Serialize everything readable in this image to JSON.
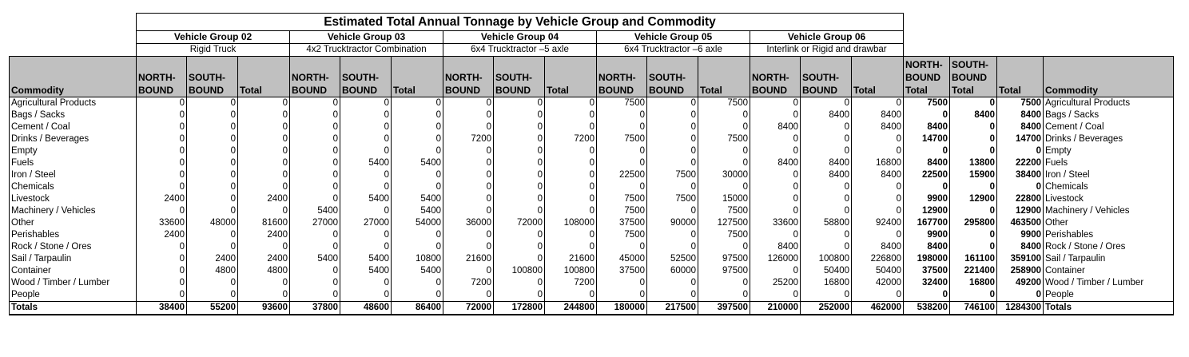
{
  "title": "Estimated Total Annual Tonnage by Vehicle Group and Commodity",
  "groups": [
    {
      "name": "Vehicle Group 02",
      "desc": "Rigid Truck"
    },
    {
      "name": "Vehicle Group 03",
      "desc": "4x2 Trucktractor Combination"
    },
    {
      "name": "Vehicle Group 04",
      "desc": "6x4 Trucktractor –5 axle"
    },
    {
      "name": "Vehicle Group 05",
      "desc": "6x4 Trucktractor –6 axle"
    },
    {
      "name": "Vehicle Group 06",
      "desc": "Interlink or Rigid and drawbar"
    }
  ],
  "headers": {
    "commodity": "Commodity",
    "north": "NORTH-BOUND",
    "south": "SOUTH-BOUND",
    "total": "Total",
    "north_total": "NORTH-BOUND Total",
    "south_total": "SOUTH-BOUND Total",
    "grand_total": "Total",
    "commodity_right": "Commodity"
  },
  "rows": [
    {
      "label": "Agricultural Products",
      "values": [
        0,
        0,
        0,
        0,
        0,
        0,
        0,
        0,
        0,
        7500,
        0,
        7500,
        0,
        0,
        0,
        7500,
        0,
        7500
      ]
    },
    {
      "label": "Bags / Sacks",
      "values": [
        0,
        0,
        0,
        0,
        0,
        0,
        0,
        0,
        0,
        0,
        0,
        0,
        0,
        8400,
        8400,
        0,
        8400,
        8400
      ]
    },
    {
      "label": "Cement / Coal",
      "values": [
        0,
        0,
        0,
        0,
        0,
        0,
        0,
        0,
        0,
        0,
        0,
        0,
        8400,
        0,
        8400,
        8400,
        0,
        8400
      ]
    },
    {
      "label": "Drinks / Beverages",
      "values": [
        0,
        0,
        0,
        0,
        0,
        0,
        7200,
        0,
        7200,
        7500,
        0,
        7500,
        0,
        0,
        0,
        14700,
        0,
        14700
      ]
    },
    {
      "label": "Empty",
      "values": [
        0,
        0,
        0,
        0,
        0,
        0,
        0,
        0,
        0,
        0,
        0,
        0,
        0,
        0,
        0,
        0,
        0,
        0
      ]
    },
    {
      "label": "Fuels",
      "values": [
        0,
        0,
        0,
        0,
        5400,
        5400,
        0,
        0,
        0,
        0,
        0,
        0,
        8400,
        8400,
        16800,
        8400,
        13800,
        22200
      ]
    },
    {
      "label": "Iron / Steel",
      "values": [
        0,
        0,
        0,
        0,
        0,
        0,
        0,
        0,
        0,
        22500,
        7500,
        30000,
        0,
        8400,
        8400,
        22500,
        15900,
        38400
      ]
    },
    {
      "label": "Chemicals",
      "values": [
        0,
        0,
        0,
        0,
        0,
        0,
        0,
        0,
        0,
        0,
        0,
        0,
        0,
        0,
        0,
        0,
        0,
        0
      ]
    },
    {
      "label": "Livestock",
      "values": [
        2400,
        0,
        2400,
        0,
        5400,
        5400,
        0,
        0,
        0,
        7500,
        7500,
        15000,
        0,
        0,
        0,
        9900,
        12900,
        22800
      ]
    },
    {
      "label": "Machinery / Vehicles",
      "values": [
        0,
        0,
        0,
        5400,
        0,
        5400,
        0,
        0,
        0,
        7500,
        0,
        7500,
        0,
        0,
        0,
        12900,
        0,
        12900
      ]
    },
    {
      "label": "Other",
      "values": [
        33600,
        48000,
        81600,
        27000,
        27000,
        54000,
        36000,
        72000,
        108000,
        37500,
        90000,
        127500,
        33600,
        58800,
        92400,
        167700,
        295800,
        463500
      ]
    },
    {
      "label": "Perishables",
      "values": [
        2400,
        0,
        2400,
        0,
        0,
        0,
        0,
        0,
        0,
        7500,
        0,
        7500,
        0,
        0,
        0,
        9900,
        0,
        9900
      ]
    },
    {
      "label": "Rock / Stone / Ores",
      "values": [
        0,
        0,
        0,
        0,
        0,
        0,
        0,
        0,
        0,
        0,
        0,
        0,
        8400,
        0,
        8400,
        8400,
        0,
        8400
      ]
    },
    {
      "label": "Sail / Tarpaulin",
      "values": [
        0,
        2400,
        2400,
        5400,
        5400,
        10800,
        21600,
        0,
        21600,
        45000,
        52500,
        97500,
        126000,
        100800,
        226800,
        198000,
        161100,
        359100
      ]
    },
    {
      "label": "Container",
      "values": [
        0,
        4800,
        4800,
        0,
        5400,
        5400,
        0,
        100800,
        100800,
        37500,
        60000,
        97500,
        0,
        50400,
        50400,
        37500,
        221400,
        258900
      ]
    },
    {
      "label": "Wood / Timber / Lumber",
      "values": [
        0,
        0,
        0,
        0,
        0,
        0,
        7200,
        0,
        7200,
        0,
        0,
        0,
        25200,
        16800,
        42000,
        32400,
        16800,
        49200
      ]
    },
    {
      "label": "People",
      "values": [
        0,
        0,
        0,
        0,
        0,
        0,
        0,
        0,
        0,
        0,
        0,
        0,
        0,
        0,
        0,
        0,
        0,
        0
      ]
    }
  ],
  "totals": {
    "label": "Totals",
    "values": [
      38400,
      55200,
      93600,
      37800,
      48600,
      86400,
      72000,
      172800,
      244800,
      180000,
      217500,
      397500,
      210000,
      252000,
      462000,
      538200,
      746100,
      1284300
    ]
  }
}
